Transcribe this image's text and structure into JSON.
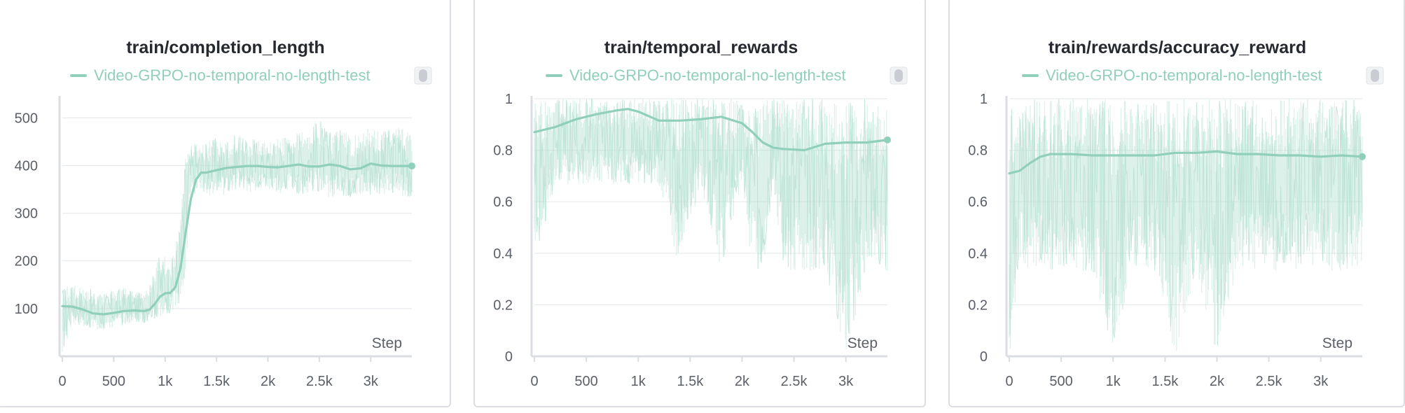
{
  "colors": {
    "series": "#90cfbb",
    "raw": "#b9e2d4",
    "grid": "#e8eaed",
    "axis": "#dadde2",
    "text": "#5b5f68",
    "title": "#262930"
  },
  "chart_data": [
    {
      "type": "line",
      "title": "train/completion_length",
      "xlabel": "Step",
      "ylabel": "",
      "legend_position": "top",
      "grid": true,
      "xlim": [
        0,
        3400
      ],
      "ylim": [
        0,
        540
      ],
      "xticks": [
        0,
        500,
        1000,
        1500,
        2000,
        2500,
        3000
      ],
      "xtick_labels": [
        "0",
        "500",
        "1k",
        "1.5k",
        "2k",
        "2.5k",
        "3k"
      ],
      "yticks": [
        100,
        200,
        300,
        400,
        500
      ],
      "ytick_labels": [
        "100",
        "200",
        "300",
        "400",
        "500"
      ],
      "series": [
        {
          "name": "Video-GRPO-no-temporal-no-length-test",
          "x": [
            0,
            100,
            200,
            300,
            400,
            500,
            600,
            700,
            800,
            850,
            900,
            950,
            1000,
            1050,
            1100,
            1150,
            1200,
            1250,
            1300,
            1350,
            1400,
            1500,
            1600,
            1700,
            1800,
            1900,
            2000,
            2100,
            2200,
            2300,
            2400,
            2500,
            2600,
            2700,
            2800,
            2900,
            3000,
            3100,
            3200,
            3300,
            3400
          ],
          "smoothed": [
            105,
            104,
            98,
            90,
            88,
            91,
            95,
            96,
            95,
            98,
            110,
            125,
            132,
            133,
            145,
            185,
            260,
            330,
            370,
            385,
            385,
            390,
            395,
            397,
            399,
            399,
            397,
            396,
            399,
            402,
            398,
            398,
            402,
            399,
            392,
            394,
            404,
            400,
            399,
            399,
            399
          ],
          "raw_range": [
            [
              0,
              150
            ],
            [
              70,
              150
            ],
            [
              60,
              145
            ],
            [
              55,
              140
            ],
            [
              55,
              130
            ],
            [
              60,
              140
            ],
            [
              65,
              145
            ],
            [
              70,
              135
            ],
            [
              70,
              135
            ],
            [
              75,
              150
            ],
            [
              75,
              185
            ],
            [
              80,
              220
            ],
            [
              85,
              210
            ],
            [
              90,
              195
            ],
            [
              95,
              230
            ],
            [
              100,
              300
            ],
            [
              170,
              440
            ],
            [
              330,
              440
            ],
            [
              340,
              450
            ],
            [
              350,
              440
            ],
            [
              340,
              450
            ],
            [
              330,
              460
            ],
            [
              340,
              450
            ],
            [
              350,
              470
            ],
            [
              340,
              450
            ],
            [
              350,
              460
            ],
            [
              350,
              450
            ],
            [
              340,
              460
            ],
            [
              350,
              460
            ],
            [
              340,
              470
            ],
            [
              340,
              480
            ],
            [
              340,
              500
            ],
            [
              330,
              470
            ],
            [
              340,
              480
            ],
            [
              330,
              460
            ],
            [
              340,
              470
            ],
            [
              330,
              480
            ],
            [
              340,
              470
            ],
            [
              340,
              480
            ],
            [
              330,
              480
            ],
            [
              330,
              480
            ]
          ]
        }
      ]
    },
    {
      "type": "line",
      "title": "train/temporal_rewards",
      "xlabel": "Step",
      "ylabel": "",
      "legend_position": "top",
      "grid": true,
      "xlim": [
        0,
        3400
      ],
      "ylim": [
        0,
        1
      ],
      "xticks": [
        0,
        500,
        1000,
        1500,
        2000,
        2500,
        3000
      ],
      "xtick_labels": [
        "0",
        "500",
        "1k",
        "1.5k",
        "2k",
        "2.5k",
        "3k"
      ],
      "yticks": [
        0,
        0.2,
        0.4,
        0.6,
        0.8,
        1
      ],
      "ytick_labels": [
        "0",
        "0.2",
        "0.4",
        "0.6",
        "0.8",
        "1"
      ],
      "series": [
        {
          "name": "Video-GRPO-no-temporal-no-length-test",
          "x": [
            0,
            200,
            400,
            600,
            800,
            900,
            1000,
            1200,
            1400,
            1600,
            1800,
            2000,
            2100,
            2200,
            2300,
            2400,
            2600,
            2800,
            3000,
            3200,
            3400
          ],
          "smoothed": [
            0.87,
            0.89,
            0.92,
            0.94,
            0.955,
            0.96,
            0.95,
            0.915,
            0.915,
            0.92,
            0.93,
            0.905,
            0.87,
            0.83,
            0.81,
            0.805,
            0.8,
            0.825,
            0.83,
            0.83,
            0.84
          ],
          "raw_range": [
            [
              0.33,
              1
            ],
            [
              0.67,
              1
            ],
            [
              0.67,
              1
            ],
            [
              0.67,
              1
            ],
            [
              0.67,
              1
            ],
            [
              0.67,
              1
            ],
            [
              0.67,
              1
            ],
            [
              0.67,
              1
            ],
            [
              0.33,
              1
            ],
            [
              0.67,
              1
            ],
            [
              0.33,
              1
            ],
            [
              0.67,
              1
            ],
            [
              0.33,
              1
            ],
            [
              0.33,
              1
            ],
            [
              0.67,
              1
            ],
            [
              0.33,
              1
            ],
            [
              0.33,
              1
            ],
            [
              0.33,
              1
            ],
            [
              0.0,
              1
            ],
            [
              0.33,
              1
            ],
            [
              0.33,
              1
            ]
          ]
        }
      ]
    },
    {
      "type": "line",
      "title": "train/rewards/accuracy_reward",
      "xlabel": "Step",
      "ylabel": "",
      "legend_position": "top",
      "grid": true,
      "xlim": [
        0,
        3400
      ],
      "ylim": [
        0,
        1
      ],
      "xticks": [
        0,
        500,
        1000,
        1500,
        2000,
        2500,
        3000
      ],
      "xtick_labels": [
        "0",
        "500",
        "1k",
        "1.5k",
        "2k",
        "2.5k",
        "3k"
      ],
      "yticks": [
        0,
        0.2,
        0.4,
        0.6,
        0.8,
        1
      ],
      "ytick_labels": [
        "0",
        "0.2",
        "0.4",
        "0.6",
        "0.8",
        "1"
      ],
      "series": [
        {
          "name": "Video-GRPO-no-temporal-no-length-test",
          "x": [
            0,
            100,
            200,
            300,
            400,
            600,
            800,
            1000,
            1200,
            1400,
            1600,
            1800,
            2000,
            2200,
            2400,
            2600,
            2800,
            3000,
            3200,
            3400
          ],
          "smoothed": [
            0.71,
            0.72,
            0.75,
            0.775,
            0.785,
            0.785,
            0.78,
            0.78,
            0.78,
            0.78,
            0.79,
            0.79,
            0.795,
            0.785,
            0.785,
            0.78,
            0.78,
            0.775,
            0.78,
            0.775
          ],
          "raw_range": [
            [
              0.0,
              1
            ],
            [
              0.33,
              1
            ],
            [
              0.33,
              1
            ],
            [
              0.33,
              1
            ],
            [
              0.33,
              1
            ],
            [
              0.33,
              1
            ],
            [
              0.33,
              1
            ],
            [
              0.0,
              1
            ],
            [
              0.33,
              1
            ],
            [
              0.33,
              1
            ],
            [
              0.0,
              1
            ],
            [
              0.33,
              1
            ],
            [
              0.0,
              1
            ],
            [
              0.33,
              1
            ],
            [
              0.33,
              1
            ],
            [
              0.33,
              1
            ],
            [
              0.33,
              1
            ],
            [
              0.33,
              1
            ],
            [
              0.33,
              1
            ],
            [
              0.33,
              1
            ]
          ]
        }
      ]
    }
  ]
}
